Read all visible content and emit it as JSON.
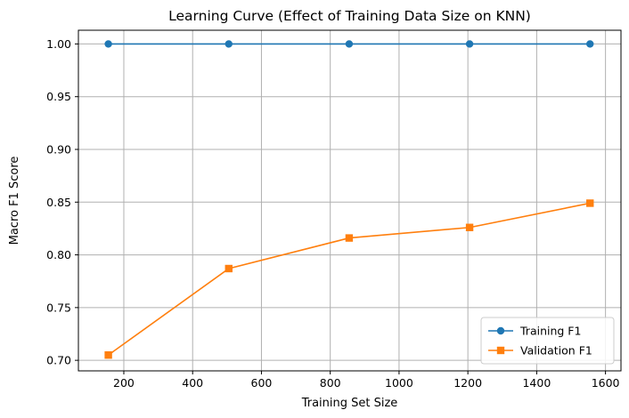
{
  "chart_data": {
    "type": "line",
    "title": "Learning Curve (Effect of Training Data Size on KNN)",
    "xlabel": "Training Set Size",
    "ylabel": "Macro F1 Score",
    "xlim": [
      68,
      1645
    ],
    "ylim": [
      0.69,
      1.013
    ],
    "xticks": [
      200,
      400,
      600,
      800,
      1000,
      1200,
      1400,
      1600
    ],
    "xtick_labels": [
      "200",
      "400",
      "600",
      "800",
      "1000",
      "1200",
      "1400",
      "1600"
    ],
    "yticks": [
      0.7,
      0.75,
      0.8,
      0.85,
      0.9,
      0.95,
      1.0
    ],
    "ytick_labels": [
      "0.70",
      "0.75",
      "0.80",
      "0.85",
      "0.90",
      "0.95",
      "1.00"
    ],
    "grid": true,
    "legend_position": "bottom-right",
    "x": [
      155,
      505,
      855,
      1205,
      1555
    ],
    "series": [
      {
        "name": "Training F1",
        "values": [
          1.0,
          1.0,
          1.0,
          1.0,
          1.0
        ],
        "color": "#1f77b4",
        "marker": "circle"
      },
      {
        "name": "Validation F1",
        "values": [
          0.705,
          0.787,
          0.816,
          0.826,
          0.849
        ],
        "color": "#ff7f0e",
        "marker": "square"
      }
    ]
  }
}
